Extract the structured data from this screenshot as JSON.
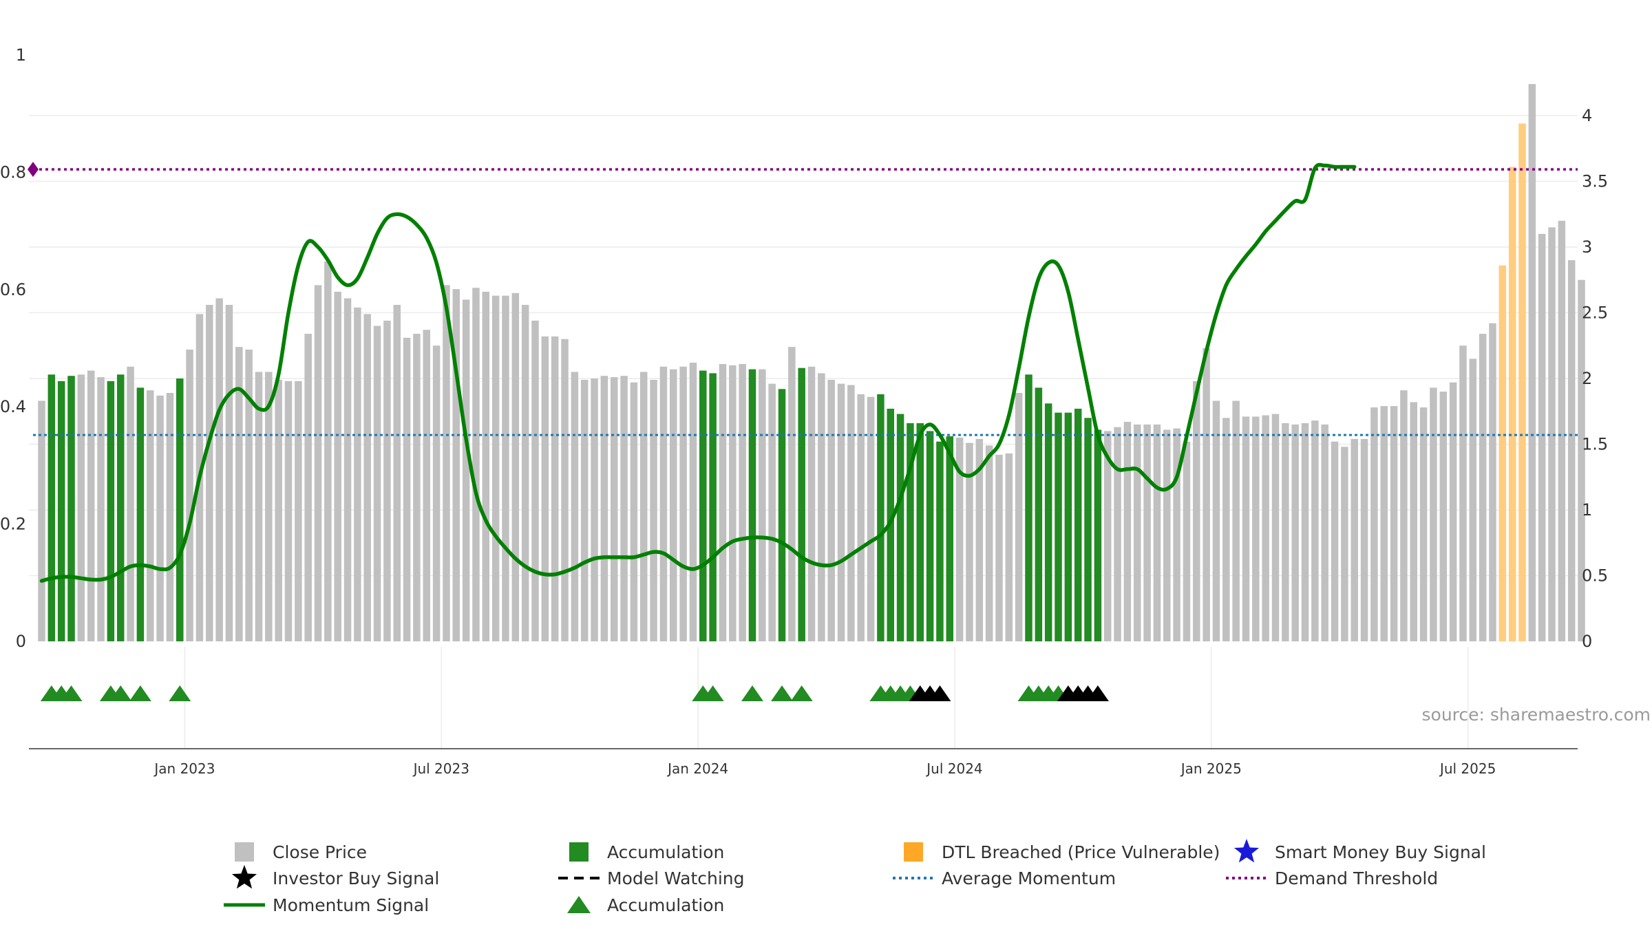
{
  "chart_data": {
    "type": "bar",
    "source_text": "source: sharemaestro.com",
    "left_axis": {
      "ylim": [
        0,
        1
      ],
      "ticks": [
        "0",
        "0.2",
        "0.4",
        "0.6",
        "0.8",
        "1"
      ]
    },
    "right_axis": {
      "ylim": [
        0,
        4.5
      ],
      "ticks": [
        "0",
        "0.5",
        "1",
        "1.5",
        "2",
        "2.5",
        "3",
        "3.5",
        "4"
      ]
    },
    "x_ticks": [
      "Jan 2023",
      "Jul 2023",
      "Jan 2024",
      "Jul 2024",
      "Jan 2025",
      "Jul 2025"
    ],
    "x_tick_weeks": [
      14.5,
      40.5,
      66.5,
      92.5,
      118.5,
      144.5
    ],
    "demand_threshold": 0.805,
    "average_momentum": 0.352,
    "colors": {
      "price": "#c0c0c0",
      "accumulation": "#228b22",
      "dtl": "#ffcc80",
      "momentum": "#008000",
      "average": "#1f77b4",
      "threshold": "#800080"
    },
    "close_prices": [
      1.83,
      2.03,
      1.98,
      2.02,
      2.03,
      2.06,
      2.01,
      1.98,
      2.03,
      2.09,
      1.93,
      1.91,
      1.87,
      1.89,
      2.0,
      2.22,
      2.49,
      2.56,
      2.61,
      2.56,
      2.24,
      2.22,
      2.05,
      2.05,
      1.99,
      1.98,
      1.98,
      2.34,
      2.71,
      2.89,
      2.66,
      2.61,
      2.54,
      2.49,
      2.4,
      2.44,
      2.56,
      2.31,
      2.34,
      2.37,
      2.25,
      2.71,
      2.68,
      2.6,
      2.69,
      2.66,
      2.63,
      2.63,
      2.65,
      2.56,
      2.44,
      2.32,
      2.32,
      2.3,
      2.05,
      1.99,
      2.0,
      2.02,
      2.01,
      2.02,
      1.97,
      2.05,
      1.99,
      2.09,
      2.07,
      2.09,
      2.12,
      2.06,
      2.04,
      2.11,
      2.1,
      2.11,
      2.07,
      2.07,
      1.96,
      1.92,
      2.24,
      2.08,
      2.09,
      2.04,
      1.99,
      1.96,
      1.95,
      1.88,
      1.86,
      1.88,
      1.77,
      1.73,
      1.66,
      1.66,
      1.6,
      1.52,
      1.56,
      1.55,
      1.51,
      1.54,
      1.49,
      1.42,
      1.43,
      1.89,
      2.03,
      1.93,
      1.81,
      1.74,
      1.74,
      1.77,
      1.7,
      1.61,
      1.6,
      1.63,
      1.67,
      1.65,
      1.65,
      1.65,
      1.61,
      1.62,
      1.52,
      1.98,
      2.23,
      1.83,
      1.7,
      1.83,
      1.71,
      1.71,
      1.72,
      1.73,
      1.66,
      1.65,
      1.66,
      1.68,
      1.65,
      1.52,
      1.48,
      1.54,
      1.54,
      1.78,
      1.79,
      1.79,
      1.91,
      1.82,
      1.78,
      1.93,
      1.9,
      1.97,
      2.25,
      2.15,
      2.34,
      2.42,
      2.86,
      3.61,
      3.94,
      4.24,
      3.1,
      3.15,
      3.2,
      2.9,
      2.75
    ],
    "accumulation_weeks": [
      1,
      2,
      3,
      7,
      8,
      10,
      14,
      67,
      68,
      72,
      75,
      77,
      85,
      86,
      87,
      88,
      89,
      90,
      91,
      92,
      100,
      101,
      102,
      103,
      104,
      105,
      106,
      107
    ],
    "dtl_weeks": [
      148,
      149,
      150
    ],
    "momentum": [
      0.46,
      0.48,
      0.49,
      0.49,
      0.48,
      0.47,
      0.47,
      0.49,
      0.53,
      0.57,
      0.58,
      0.57,
      0.55,
      0.56,
      0.66,
      0.9,
      1.25,
      1.53,
      1.76,
      1.88,
      1.92,
      1.85,
      1.77,
      1.79,
      2.03,
      2.5,
      2.86,
      3.04,
      3.0,
      2.9,
      2.77,
      2.71,
      2.76,
      2.92,
      3.1,
      3.22,
      3.25,
      3.23,
      3.17,
      3.07,
      2.88,
      2.54,
      2.05,
      1.54,
      1.13,
      0.92,
      0.8,
      0.71,
      0.63,
      0.57,
      0.53,
      0.51,
      0.51,
      0.53,
      0.56,
      0.6,
      0.63,
      0.64,
      0.64,
      0.64,
      0.64,
      0.66,
      0.68,
      0.67,
      0.62,
      0.57,
      0.55,
      0.58,
      0.64,
      0.71,
      0.76,
      0.78,
      0.79,
      0.79,
      0.78,
      0.75,
      0.7,
      0.64,
      0.6,
      0.58,
      0.58,
      0.61,
      0.66,
      0.71,
      0.76,
      0.81,
      0.91,
      1.09,
      1.32,
      1.57,
      1.65,
      1.57,
      1.43,
      1.29,
      1.26,
      1.31,
      1.41,
      1.5,
      1.72,
      2.08,
      2.47,
      2.76,
      2.88,
      2.86,
      2.66,
      2.3,
      1.93,
      1.57,
      1.4,
      1.31,
      1.31,
      1.31,
      1.24,
      1.17,
      1.16,
      1.25,
      1.56,
      1.89,
      2.21,
      2.49,
      2.71,
      2.83,
      2.93,
      3.02,
      3.12,
      3.2,
      3.28,
      3.35,
      3.36,
      3.6,
      3.62,
      3.61,
      3.61,
      3.61
    ],
    "accum_triangles": [
      1,
      2,
      3,
      7,
      8,
      10,
      14,
      67,
      68,
      72,
      75,
      77,
      85,
      86,
      87,
      88,
      100,
      101,
      102,
      103
    ],
    "investor_triangles": [
      89,
      90,
      91,
      104,
      105,
      106,
      107
    ],
    "legend": [
      {
        "label": "Close Price",
        "marker": "square",
        "color": "#c0c0c0"
      },
      {
        "label": "Accumulation",
        "marker": "square",
        "color": "#228b22"
      },
      {
        "label": "DTL Breached (Price Vulnerable)",
        "marker": "square",
        "color": "#ffa726"
      },
      {
        "label": "Smart Money Buy Signal",
        "marker": "star",
        "color": "#1a1adb"
      },
      {
        "label": "Investor Buy Signal",
        "marker": "star",
        "color": "#000000"
      },
      {
        "label": "Model Watching",
        "marker": "dash",
        "color": "#000000"
      },
      {
        "label": "Average Momentum",
        "marker": "dot",
        "color": "#1f77b4"
      },
      {
        "label": "Demand Threshold",
        "marker": "dot",
        "color": "#800080"
      },
      {
        "label": "Momentum Signal",
        "marker": "line",
        "color": "#008000"
      },
      {
        "label": "Accumulation",
        "marker": "triangle",
        "color": "#228b22"
      }
    ]
  }
}
